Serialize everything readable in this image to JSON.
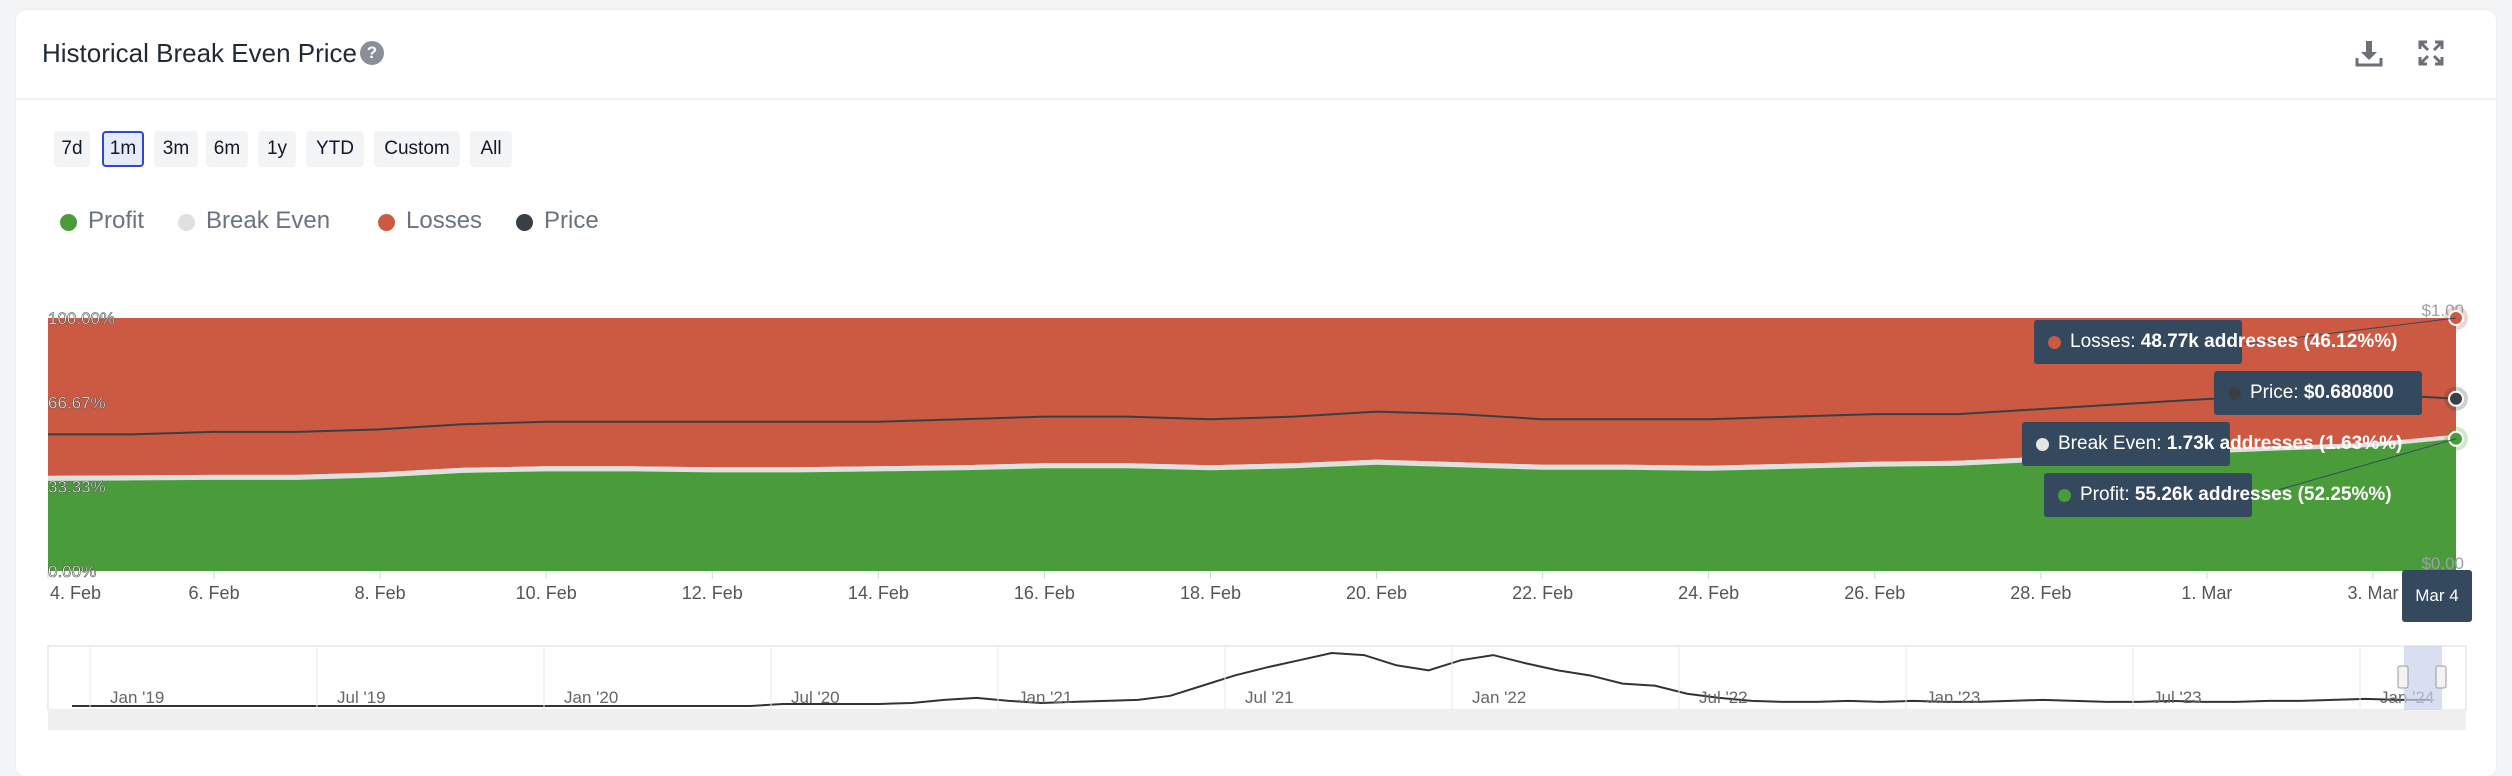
{
  "header": {
    "title": "Historical Break Even Price",
    "help_glyph": "?",
    "download_icon": "download-icon",
    "fullscreen_icon": "fullscreen-icon"
  },
  "ranges": [
    {
      "label": "7d",
      "selected": false
    },
    {
      "label": "1m",
      "selected": true
    },
    {
      "label": "3m",
      "selected": false
    },
    {
      "label": "6m",
      "selected": false
    },
    {
      "label": "1y",
      "selected": false
    },
    {
      "label": "YTD",
      "selected": false
    },
    {
      "label": "Custom",
      "selected": false
    },
    {
      "label": "All",
      "selected": false
    }
  ],
  "colors": {
    "profit": "#4a9b3a",
    "break_even": "#e0e0e0",
    "losses": "#cc5942",
    "price": "#3a3f47",
    "tooltip_bg": "#34495e",
    "navigator_mask": "#c9d1ea"
  },
  "chart_data": {
    "type": "area",
    "stacked": true,
    "legend": [
      "Profit",
      "Break Even",
      "Losses",
      "Price"
    ],
    "legend_placement": "top-left",
    "x_tick_labels": [
      "4. Feb",
      "6. Feb",
      "8. Feb",
      "10. Feb",
      "12. Feb",
      "14. Feb",
      "16. Feb",
      "18. Feb",
      "20. Feb",
      "22. Feb",
      "24. Feb",
      "26. Feb",
      "28. Feb",
      "1. Mar",
      "3. Mar"
    ],
    "y_left_ticks": [
      "0.00%",
      "33.33%",
      "66.67%",
      "100.00%"
    ],
    "y_right_ticks": [
      "$0.00",
      "$1.00"
    ],
    "ylim_percent": [
      0,
      100
    ],
    "ylim_price": [
      0,
      1
    ],
    "x": [
      "2024-02-04",
      "2024-02-05",
      "2024-02-06",
      "2024-02-07",
      "2024-02-08",
      "2024-02-09",
      "2024-02-10",
      "2024-02-11",
      "2024-02-12",
      "2024-02-13",
      "2024-02-14",
      "2024-02-15",
      "2024-02-16",
      "2024-02-17",
      "2024-02-18",
      "2024-02-19",
      "2024-02-20",
      "2024-02-21",
      "2024-02-22",
      "2024-02-23",
      "2024-02-24",
      "2024-02-25",
      "2024-02-26",
      "2024-02-27",
      "2024-02-28",
      "2024-02-29",
      "2024-03-01",
      "2024-03-02",
      "2024-03-03",
      "2024-03-04"
    ],
    "series": [
      {
        "name": "Profit",
        "values": [
          35.6,
          35.8,
          36.0,
          36.0,
          37.0,
          38.8,
          39.4,
          39.4,
          39.0,
          39.0,
          39.4,
          39.8,
          40.6,
          40.6,
          39.8,
          40.6,
          42.0,
          41.0,
          40.0,
          40.0,
          39.6,
          40.4,
          41.2,
          41.6,
          43.2,
          45.0,
          46.5,
          47.8,
          49.0,
          52.25
        ]
      },
      {
        "name": "Break Even",
        "values": [
          2.0,
          2.0,
          2.0,
          2.0,
          2.0,
          2.0,
          2.0,
          2.0,
          2.0,
          2.0,
          2.0,
          2.0,
          2.0,
          2.0,
          2.0,
          2.0,
          2.0,
          2.0,
          2.0,
          2.0,
          2.0,
          2.0,
          2.0,
          2.0,
          1.9,
          1.8,
          1.8,
          1.7,
          1.7,
          1.63
        ]
      },
      {
        "name": "Losses",
        "values": [
          62.4,
          62.2,
          62.0,
          62.0,
          61.0,
          59.2,
          58.6,
          58.6,
          59.0,
          59.0,
          58.6,
          58.2,
          57.4,
          57.4,
          58.2,
          57.4,
          56.0,
          57.0,
          58.0,
          58.0,
          58.4,
          57.6,
          56.8,
          56.4,
          54.9,
          53.2,
          51.7,
          50.5,
          49.3,
          46.12
        ]
      },
      {
        "name": "Price",
        "axis": "right",
        "values": [
          0.54,
          0.54,
          0.55,
          0.55,
          0.56,
          0.58,
          0.59,
          0.59,
          0.59,
          0.59,
          0.59,
          0.6,
          0.61,
          0.61,
          0.6,
          0.61,
          0.63,
          0.62,
          0.6,
          0.6,
          0.6,
          0.61,
          0.62,
          0.62,
          0.64,
          0.66,
          0.68,
          0.69,
          0.7,
          0.6808
        ]
      }
    ],
    "tooltip": {
      "date": "Mar 4",
      "rows": [
        {
          "series": "Losses",
          "label": "Losses: ",
          "value": "48.77k addresses (46.12%%)"
        },
        {
          "series": "Price",
          "label": "Price: ",
          "value": "$0.680800"
        },
        {
          "series": "Break Even",
          "label": "Break Even: ",
          "value": "1.73k addresses (1.63%%)"
        },
        {
          "series": "Profit",
          "label": "Profit: ",
          "value": "55.26k addresses (52.25%%)"
        }
      ]
    },
    "navigator": {
      "labels": [
        "Jan '19",
        "Jul '19",
        "Jan '20",
        "Jul '20",
        "Jan '21",
        "Jul '21",
        "Jan '22",
        "Jul '22",
        "Jan '23",
        "Jul '23",
        "Jan '24"
      ],
      "price_series": [
        0,
        0,
        0,
        0,
        0,
        0,
        0,
        0,
        0,
        0,
        0,
        0,
        0,
        0,
        0,
        0,
        0,
        0,
        0,
        0,
        0,
        0,
        0.02,
        0.02,
        0.02,
        0.02,
        0.03,
        0.06,
        0.08,
        0.05,
        0.03,
        0.04,
        0.05,
        0.06,
        0.1,
        0.2,
        0.3,
        0.38,
        0.45,
        0.52,
        0.5,
        0.4,
        0.35,
        0.45,
        0.5,
        0.42,
        0.35,
        0.3,
        0.22,
        0.2,
        0.12,
        0.08,
        0.05,
        0.04,
        0.04,
        0.05,
        0.04,
        0.05,
        0.04,
        0.04,
        0.05,
        0.06,
        0.05,
        0.04,
        0.04,
        0.05,
        0.04,
        0.04,
        0.05,
        0.05,
        0.06,
        0.07,
        0.06,
        0.06
      ]
    }
  }
}
